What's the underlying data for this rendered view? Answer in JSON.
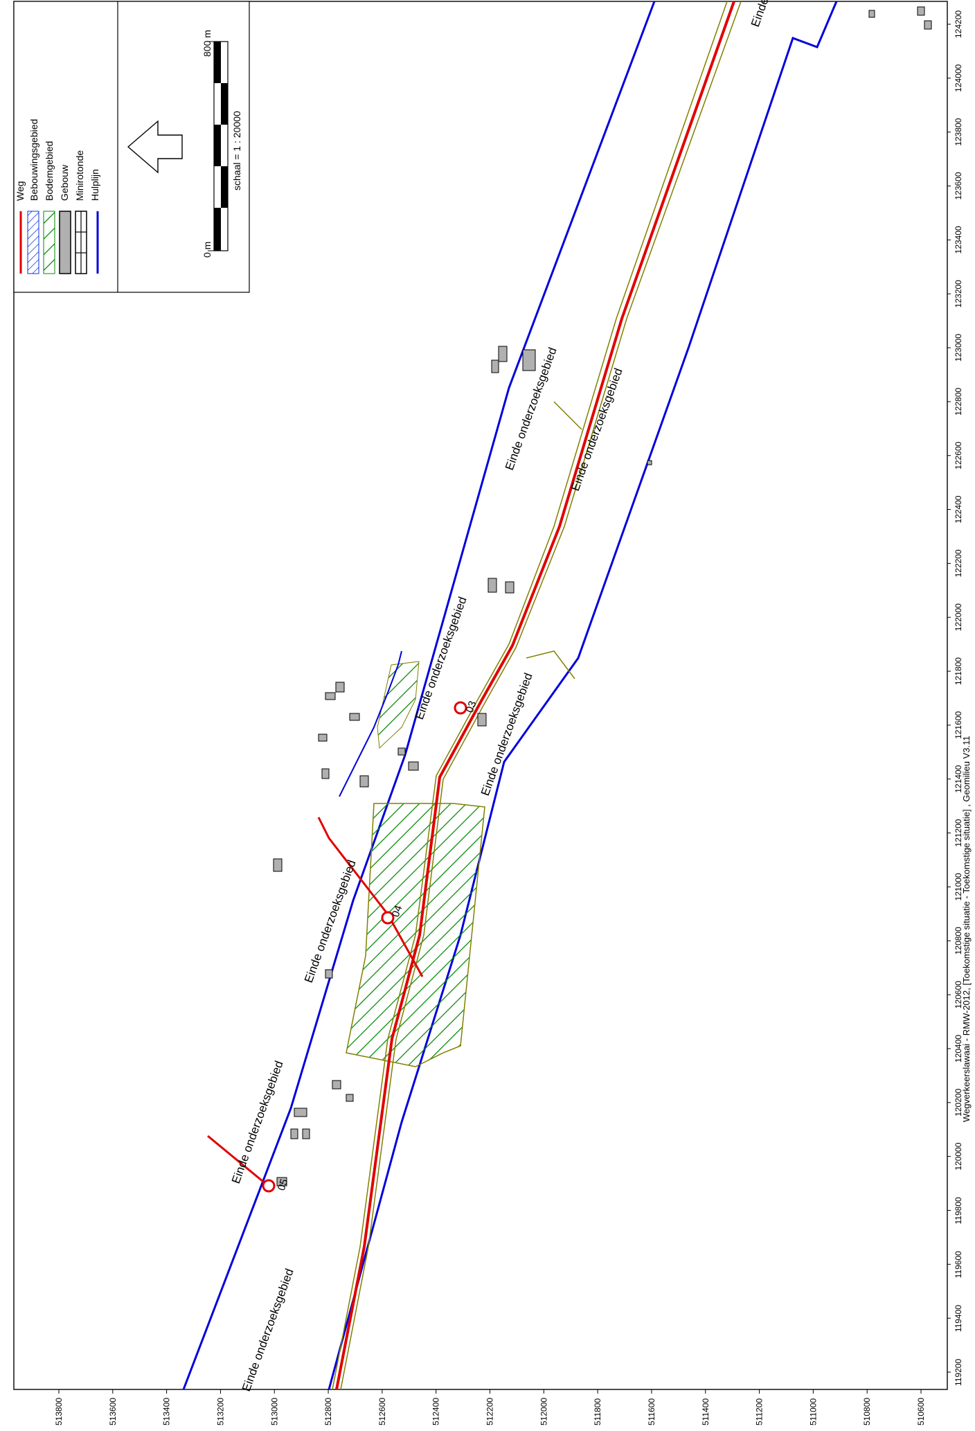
{
  "legend": {
    "items": [
      {
        "label": "Weg",
        "symbol": "red-line",
        "color": "#e00000"
      },
      {
        "label": "Bebouwingsgebied",
        "symbol": "blue-hatch",
        "color": "#1030e0"
      },
      {
        "label": "Bodemgebied",
        "symbol": "green-hatch",
        "color": "#008800"
      },
      {
        "label": "Gebouw",
        "symbol": "grey-box",
        "color": "#b0b0b0"
      },
      {
        "label": "Minirotonde",
        "symbol": "ladder",
        "color": "#000000"
      },
      {
        "label": "Hulplijn",
        "symbol": "blue-line",
        "color": "#0000dd"
      }
    ]
  },
  "north_arrow": {
    "icon": "north-arrow-icon"
  },
  "scalebar": {
    "start_label": "0 m",
    "end_label": "800 m",
    "scale_text": "schaal = 1 : 20000"
  },
  "axis_x_ticks": [
    "119200",
    "119400",
    "119600",
    "119800",
    "120000",
    "120200",
    "120400",
    "120600",
    "120800",
    "121000",
    "121200",
    "121400",
    "121600",
    "121800",
    "122000",
    "122200",
    "122400",
    "122600",
    "122800",
    "123000",
    "123200",
    "123400",
    "123600",
    "123800",
    "124000",
    "124200"
  ],
  "axis_y_ticks": [
    "513800",
    "513600",
    "513400",
    "513200",
    "513000",
    "512800",
    "512600",
    "512400",
    "512200",
    "512000",
    "511800",
    "511600",
    "511400",
    "511200",
    "511000",
    "510800",
    "510600"
  ],
  "footer": "Wegverkeerslawaai - RMW-2012, [Toekomstige situatie - Toekomstige situatie] , Geomilieu V3.11",
  "map_labels": {
    "einde_1": "Einde onderzoeksgebied",
    "einde_2": "Einde onderzoeksgebied",
    "einde_3": "Einde onderzoeksgebied",
    "einde_4": "Einde onderzoeksgebied",
    "einde_5": "Einde onderzoeksgebied",
    "einde_6": "Einde onderzoeksgebied",
    "einde_7": "Einde onderzoeksgebied",
    "einde_8": "Einde",
    "rotonde_05": "05",
    "rotonde_04": "04",
    "rotonde_03": "03"
  },
  "colors": {
    "road": "#e00000",
    "road_edge": "#808000",
    "boundary": "#0000dd",
    "hatch_green": "#008800",
    "building": "#b0b0b0"
  }
}
